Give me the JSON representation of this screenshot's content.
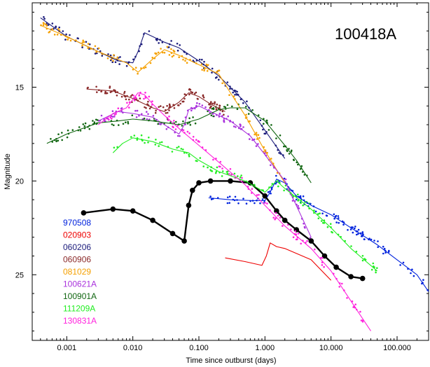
{
  "chart_data": {
    "type": "line",
    "title": "100418A",
    "xlabel": "Time since outburst (days)",
    "ylabel": "Magnitude",
    "x_scale": "log",
    "xlim": [
      0.0003,
      300
    ],
    "ylim": [
      28.5,
      10.5
    ],
    "y_inverted": true,
    "xtick_labels": [
      "0.001",
      "0.010",
      "0.100",
      "1.000",
      "10.000",
      "100.000"
    ],
    "xtick_values": [
      0.001,
      0.01,
      0.1,
      1,
      10,
      100
    ],
    "ytick_values": [
      15,
      20,
      25
    ],
    "ytick_labels": [
      "15",
      "20",
      "25"
    ],
    "legend_position": "lower-left",
    "series": [
      {
        "name": "970508",
        "color": "#0022dd",
        "x": [
          0.14,
          0.3,
          0.7,
          1.0,
          1.2,
          1.5,
          2.0,
          3.0,
          5.0,
          10,
          20,
          50,
          100,
          200,
          300
        ],
        "y": [
          20.9,
          21.0,
          21.05,
          21.05,
          20.6,
          19.9,
          20.1,
          20.8,
          21.3,
          21.8,
          22.5,
          23.4,
          24.2,
          25.0,
          25.9
        ]
      },
      {
        "name": "020903",
        "color": "#ee0000",
        "x": [
          0.25,
          0.5,
          0.9,
          1.05,
          1.2,
          1.5,
          2.0,
          5.0,
          10
        ],
        "y": [
          24.1,
          24.3,
          24.5,
          24.0,
          23.3,
          23.5,
          23.6,
          24.2,
          25.3
        ]
      },
      {
        "name": "060206",
        "color": "#1a1a7a",
        "x": [
          0.0004,
          0.001,
          0.003,
          0.006,
          0.01,
          0.012,
          0.015,
          0.02,
          0.03,
          0.05,
          0.1,
          0.2,
          0.5,
          1.0,
          2.0
        ],
        "y": [
          11.3,
          12.3,
          13.1,
          13.6,
          13.7,
          13.1,
          12.1,
          12.3,
          12.6,
          12.9,
          13.6,
          14.4,
          15.8,
          17.3,
          18.8
        ]
      },
      {
        "name": "060906",
        "color": "#8b2a2a",
        "x": [
          0.002,
          0.005,
          0.01,
          0.02,
          0.03,
          0.05,
          0.07,
          0.1,
          0.15,
          0.25
        ],
        "y": [
          15.1,
          15.2,
          15.6,
          16.1,
          16.3,
          15.8,
          15.3,
          15.5,
          15.9,
          16.3
        ]
      },
      {
        "name": "081029",
        "color": "#f5a000",
        "x": [
          0.0004,
          0.001,
          0.003,
          0.008,
          0.012,
          0.02,
          0.03,
          0.05,
          0.1,
          0.2,
          0.3,
          0.5,
          1.0,
          2.0
        ],
        "y": [
          11.7,
          12.3,
          13.1,
          13.7,
          14.2,
          13.5,
          13.0,
          13.3,
          13.8,
          14.3,
          15.3,
          16.5,
          18.4,
          20.1
        ]
      },
      {
        "name": "100621A",
        "color": "#aa33dd",
        "x": [
          0.003,
          0.006,
          0.01,
          0.02,
          0.03,
          0.05,
          0.06,
          0.07,
          0.1,
          0.15,
          0.3,
          0.6,
          1.0,
          2.0,
          5.0
        ],
        "y": [
          16.8,
          16.3,
          16.4,
          16.6,
          17.0,
          17.5,
          17.0,
          16.2,
          16.0,
          16.3,
          16.8,
          17.6,
          18.6,
          20.0,
          23.0
        ]
      },
      {
        "name": "100418A",
        "color": "#000000",
        "x": [
          0.0018,
          0.005,
          0.01,
          0.02,
          0.04,
          0.06,
          0.07,
          0.08,
          0.1,
          0.15,
          0.3,
          0.6,
          1.0,
          1.5,
          2.0,
          3.0,
          5.0,
          8.0,
          12,
          20,
          30
        ],
        "y": [
          21.7,
          21.5,
          21.6,
          22.1,
          22.8,
          23.2,
          21.3,
          20.5,
          20.1,
          20.0,
          20.0,
          20.1,
          20.8,
          21.6,
          22.1,
          22.6,
          23.2,
          24.0,
          24.6,
          25.1,
          25.2
        ]
      },
      {
        "name": "100901A",
        "color": "#116611",
        "x": [
          0.0005,
          0.001,
          0.003,
          0.006,
          0.01,
          0.02,
          0.05,
          0.1,
          0.2,
          0.3,
          0.5,
          1.0,
          2.0,
          3.0,
          5.0
        ],
        "y": [
          18.0,
          17.5,
          16.9,
          16.8,
          16.7,
          16.8,
          17.0,
          16.7,
          16.2,
          16.1,
          16.1,
          16.8,
          18.1,
          18.9,
          20.1
        ]
      },
      {
        "name": "111209A",
        "color": "#22ee22",
        "x": [
          0.005,
          0.007,
          0.01,
          0.02,
          0.04,
          0.07,
          0.1,
          0.2,
          0.5,
          1.0,
          1.5,
          2.0,
          5.0,
          10,
          20,
          50
        ],
        "y": [
          18.5,
          18.0,
          17.7,
          17.9,
          18.3,
          18.5,
          18.9,
          19.5,
          20.0,
          20.6,
          20.0,
          20.4,
          21.5,
          22.5,
          23.6,
          24.8
        ]
      },
      {
        "name": "130831A",
        "color": "#ff22dd",
        "x": [
          0.003,
          0.005,
          0.008,
          0.012,
          0.015,
          0.02,
          0.03,
          0.05,
          0.1,
          0.2,
          0.5,
          1.0,
          2.0,
          5.0,
          10,
          20,
          40
        ],
        "y": [
          17.0,
          16.4,
          16.1,
          15.3,
          15.4,
          15.9,
          16.5,
          17.2,
          18.1,
          19.0,
          20.2,
          21.3,
          22.4,
          23.6,
          24.8,
          26.4,
          28.0
        ]
      }
    ]
  }
}
